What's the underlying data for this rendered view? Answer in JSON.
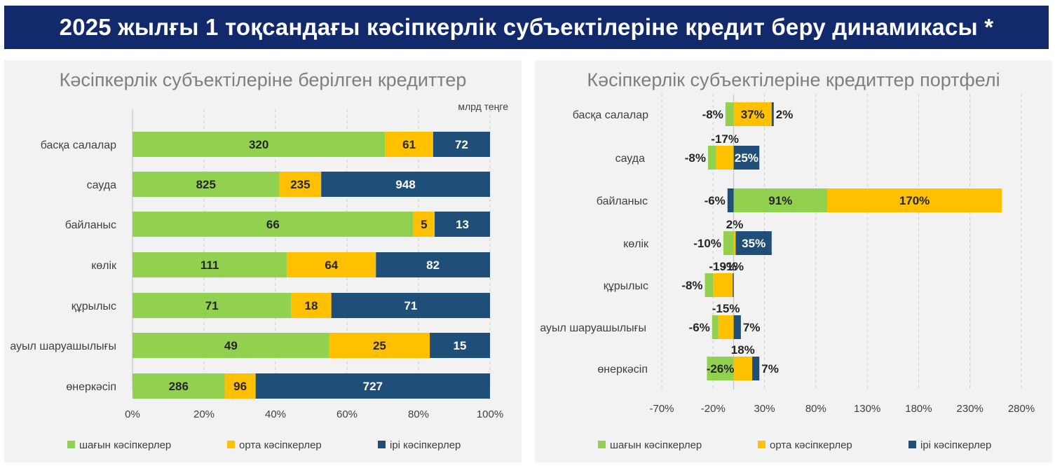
{
  "header": {
    "title": "2025 жылғы 1 тоқсандағы кәсіпкерлік субъектілеріне кредит беру динамикасы *"
  },
  "colors": {
    "small": "#92d050",
    "medium": "#ffc000",
    "large": "#1f4e79",
    "banner": "#12296b"
  },
  "chart_data": [
    {
      "type": "bar",
      "orientation": "horizontal",
      "stacked": "percent",
      "title": "Кәсіпкерлік субъектілеріне берілген кредиттер",
      "unit_label": "млрд теңге",
      "categories": [
        "басқа салалар",
        "сауда",
        "байланыс",
        "көлік",
        "құрылыс",
        "ауыл шаруашылығы",
        "өнеркәсіп"
      ],
      "series": [
        {
          "name": "шағын кәсіпкерлер",
          "values": [
            320,
            825,
            66,
            111,
            71,
            49,
            286
          ]
        },
        {
          "name": "орта кәсіпкерлер",
          "values": [
            61,
            235,
            5,
            64,
            18,
            25,
            96
          ]
        },
        {
          "name": "ірі кәсіпкерлер",
          "values": [
            72,
            948,
            13,
            82,
            71,
            15,
            727
          ]
        }
      ],
      "xlim": [
        0,
        100
      ],
      "xticks": [
        "0%",
        "20%",
        "40%",
        "60%",
        "80%",
        "100%"
      ],
      "grid": true,
      "legend": "bottom"
    },
    {
      "type": "bar",
      "orientation": "horizontal",
      "stacked": "diverging",
      "title": "Кәсіпкерлік субъектілеріне кредиттер портфелі",
      "categories": [
        "басқа салалар",
        "сауда",
        "байланыс",
        "көлік",
        "құрылыс",
        "ауыл шаруашылығы",
        "өнеркәсіп"
      ],
      "series": [
        {
          "name": "шағын кәсіпкерлер",
          "values": [
            -8,
            -8,
            91,
            -10,
            -8,
            -6,
            -26
          ]
        },
        {
          "name": "орта кәсіпкерлер",
          "values": [
            37,
            -17,
            170,
            2,
            -19,
            -15,
            18
          ]
        },
        {
          "name": "ірі кәсіпкерлер",
          "values": [
            2,
            25,
            -6,
            35,
            -1,
            7,
            7
          ]
        }
      ],
      "labels": [
        [
          "-8%",
          "37%",
          "2%"
        ],
        [
          "-8%",
          "-17%",
          "25%"
        ],
        [
          "91%",
          "170%",
          "-6%"
        ],
        [
          "-10%",
          "2%",
          "35%"
        ],
        [
          "-8%",
          "-19%",
          "-1%"
        ],
        [
          "-6%",
          "-15%",
          "7%"
        ],
        [
          "-26%",
          "18%",
          "7%"
        ]
      ],
      "xlim": [
        -70,
        280
      ],
      "xticks": [
        "-70%",
        "-20%",
        "30%",
        "80%",
        "130%",
        "180%",
        "230%",
        "280%"
      ],
      "grid": true,
      "legend": "bottom"
    }
  ]
}
